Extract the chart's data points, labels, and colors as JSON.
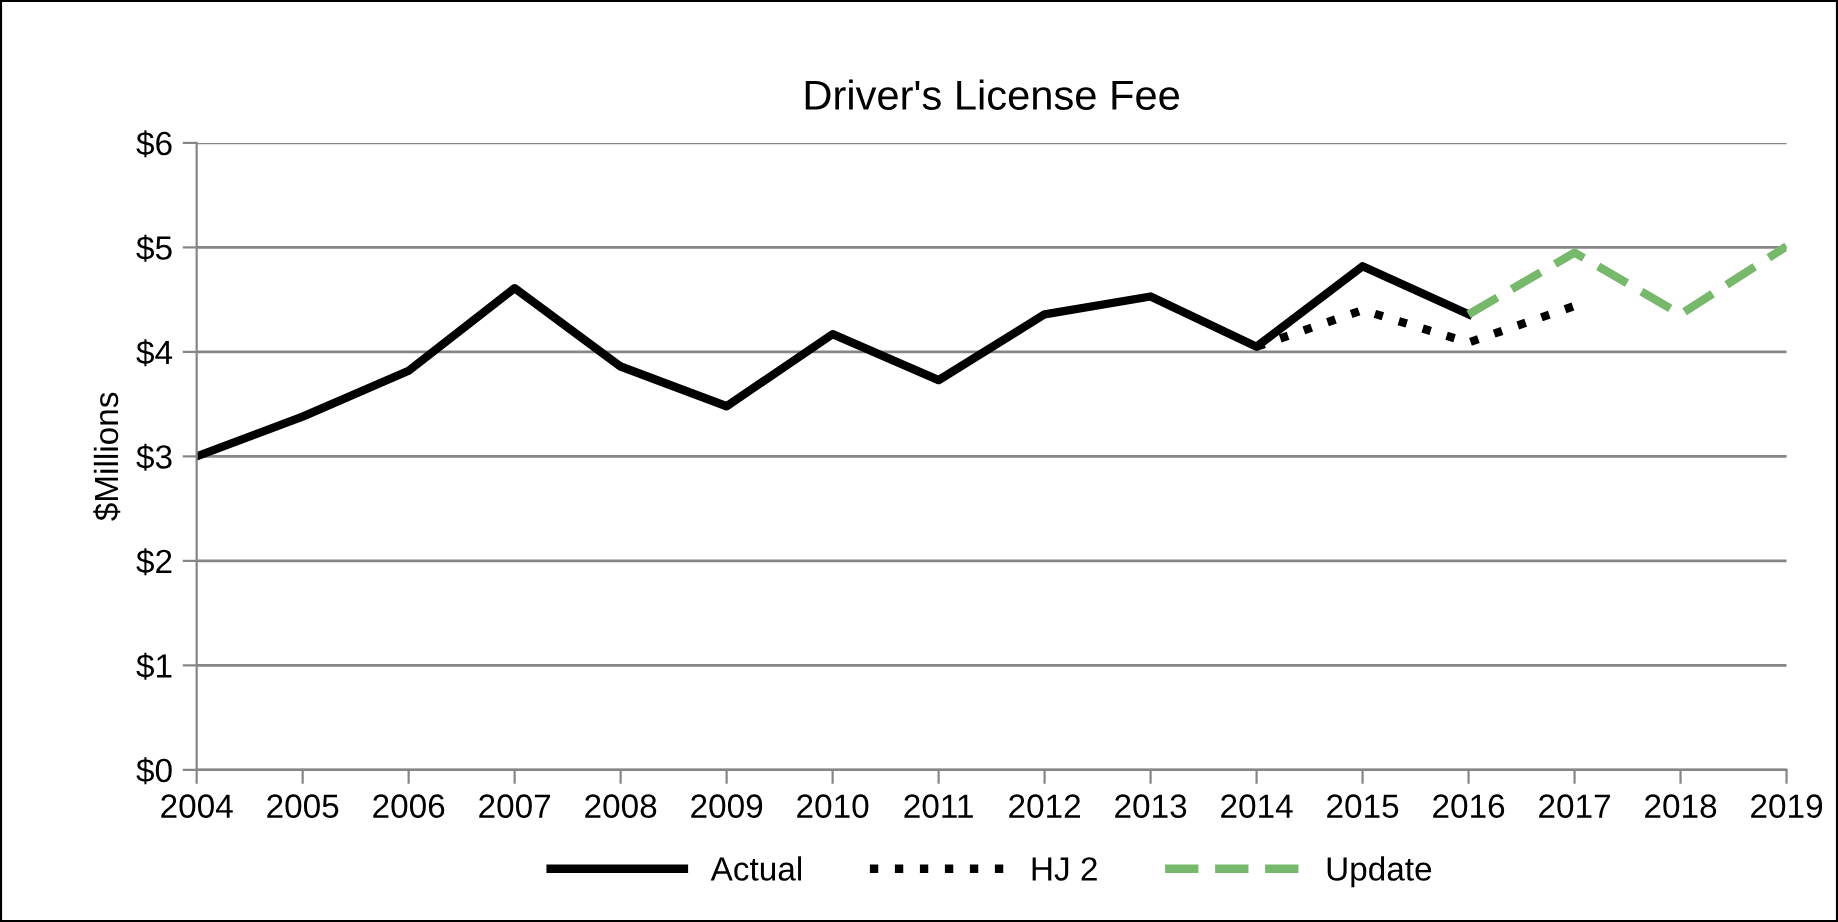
{
  "chart_data": {
    "type": "line",
    "title": "Driver's License Fee",
    "ylabel": "$Millions",
    "categories": [
      "2004",
      "2005",
      "2006",
      "2007",
      "2008",
      "2009",
      "2010",
      "2011",
      "2012",
      "2013",
      "2014",
      "2015",
      "2016",
      "2017",
      "2018",
      "2019"
    ],
    "series": [
      {
        "name": "Actual",
        "color": "#000000",
        "line_style": "solid",
        "values": [
          3.0,
          3.38,
          3.82,
          4.61,
          3.86,
          3.48,
          4.17,
          3.73,
          4.36,
          4.53,
          4.05,
          4.82,
          4.36,
          null,
          null,
          null
        ]
      },
      {
        "name": "HJ 2",
        "color": "#000000",
        "line_style": "dotted",
        "values": [
          null,
          null,
          null,
          null,
          null,
          null,
          null,
          null,
          null,
          null,
          4.05,
          4.4,
          4.09,
          4.44,
          null,
          null
        ]
      },
      {
        "name": "Update",
        "color": "#77b96b",
        "line_style": "dashed",
        "values": [
          null,
          null,
          null,
          null,
          null,
          null,
          null,
          null,
          null,
          null,
          null,
          null,
          4.36,
          4.95,
          4.36,
          5.01
        ]
      }
    ],
    "ylim": [
      0,
      6
    ],
    "yticks": [
      {
        "value": 0,
        "label": "$0"
      },
      {
        "value": 1,
        "label": "$1"
      },
      {
        "value": 2,
        "label": "$2"
      },
      {
        "value": 3,
        "label": "$3"
      },
      {
        "value": 4,
        "label": "$4"
      },
      {
        "value": 5,
        "label": "$5"
      },
      {
        "value": 6,
        "label": "$6"
      }
    ],
    "grid": "y",
    "legend": "bottom",
    "marker": "none"
  }
}
